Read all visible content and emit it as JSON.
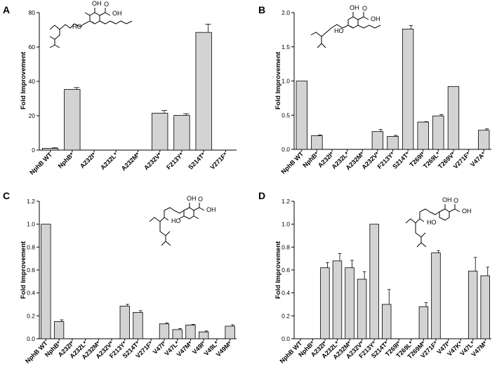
{
  "chart_data": [
    {
      "type": "bar",
      "panel": "A",
      "ylabel": "Fold Improvement",
      "ylim": [
        0,
        80
      ],
      "yticks": [
        0,
        20,
        40,
        60,
        80
      ],
      "tick_decimals": 0,
      "categories": [
        "NphB WT",
        "NphB*",
        "A232I*",
        "A232L*",
        "A232M*",
        "A232V*",
        "F213Y*",
        "S214T*",
        "V271F*"
      ],
      "values": [
        1,
        35.3,
        0,
        0,
        0,
        21.5,
        20.2,
        68.5,
        0
      ],
      "errors": [
        0.3,
        1.1,
        0,
        0,
        0,
        1.5,
        1.0,
        4.8,
        0
      ],
      "molecule": {
        "labels": [
          "OH",
          "O",
          "OH",
          "HO"
        ]
      }
    },
    {
      "type": "bar",
      "panel": "B",
      "ylabel": "Fold Improvement",
      "ylim": [
        0,
        2.0
      ],
      "yticks": [
        0.0,
        0.5,
        1.0,
        1.5,
        2.0
      ],
      "tick_decimals": 1,
      "categories": [
        "NphB WT",
        "NphB*",
        "A232I*",
        "A232L*",
        "A232M*",
        "A232V*",
        "F213Y*",
        "S214T*",
        "T269I*",
        "T269L*",
        "T269V*",
        "V271F*",
        "V47A*"
      ],
      "values": [
        1.0,
        0.2,
        0,
        0,
        0,
        0.26,
        0.19,
        1.76,
        0.4,
        0.49,
        0.92,
        0,
        0.28
      ],
      "errors": [
        0,
        0.01,
        0,
        0,
        0,
        0.03,
        0.015,
        0.05,
        0.005,
        0.02,
        0,
        0,
        0.02
      ],
      "molecule": {
        "labels": [
          "OH",
          "O",
          "OH",
          "HO"
        ]
      }
    },
    {
      "type": "bar",
      "panel": "C",
      "ylabel": "Fold Improvement",
      "ylim": [
        0,
        1.2
      ],
      "yticks": [
        0.0,
        0.2,
        0.4,
        0.6,
        0.8,
        1.0,
        1.2
      ],
      "tick_decimals": 1,
      "categories": [
        "NphB WT",
        "NphB*",
        "A232I*",
        "A232L*",
        "A232M*",
        "A232V*",
        "F213Y*",
        "S214T*",
        "V271F*",
        "V47I*",
        "V47L*",
        "V47M*",
        "V49I*",
        "V49L*",
        "V49M*"
      ],
      "values": [
        1.0,
        0.15,
        0,
        0,
        0,
        0,
        0.285,
        0.23,
        0,
        0.13,
        0.08,
        0.12,
        0.06,
        0,
        0.11
      ],
      "errors": [
        0,
        0.015,
        0,
        0,
        0,
        0,
        0.015,
        0.015,
        0,
        0.007,
        0.01,
        0.005,
        0.008,
        0,
        0.012
      ],
      "molecule": {
        "labels": [
          "OH",
          "O",
          "OH",
          "HO"
        ]
      }
    },
    {
      "type": "bar",
      "panel": "D",
      "ylabel": "Fold Improvement",
      "ylim": [
        0,
        1.2
      ],
      "yticks": [
        0.0,
        0.2,
        0.4,
        0.6,
        0.8,
        1.0,
        1.2
      ],
      "tick_decimals": 1,
      "categories": [
        "NphB WT",
        "NphB*",
        "A232I*",
        "A232L*",
        "A232M*",
        "A232V*",
        "F213Y*",
        "S214T*",
        "T269I*",
        "T269L*",
        "T269M*",
        "V271F*",
        "V47I*",
        "V47K*",
        "V47L*",
        "V47M*"
      ],
      "values": [
        0,
        0,
        0.62,
        0.68,
        0.62,
        0.52,
        1.0,
        0.3,
        0,
        0,
        0.28,
        0.75,
        0,
        0,
        0.59,
        0.55
      ],
      "errors": [
        0,
        0,
        0.045,
        0.065,
        0.065,
        0.065,
        0,
        0.13,
        0,
        0,
        0.035,
        0.02,
        0,
        0,
        0.12,
        0.075
      ],
      "molecule": {
        "labels": [
          "OH",
          "O",
          "OH",
          "HO"
        ]
      }
    }
  ]
}
